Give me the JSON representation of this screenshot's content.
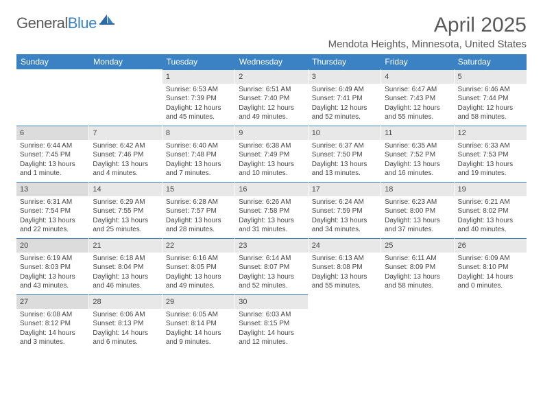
{
  "brand": {
    "word1": "General",
    "word2": "Blue",
    "logo_color": "#3b82c4",
    "text_color": "#5a5a5a"
  },
  "header": {
    "title": "April 2025",
    "location": "Mendota Heights, Minnesota, United States"
  },
  "colors": {
    "header_bg": "#3b82c4",
    "header_text": "#ffffff",
    "daynum_bg": "#e8e8e8",
    "daynum_bg_sunday": "#dcdcdc",
    "cell_border_top": "#3b82c4",
    "body_text": "#444444",
    "page_bg": "#ffffff"
  },
  "fonts": {
    "title_size": 30,
    "location_size": 15,
    "dow_size": 12,
    "daynum_size": 11,
    "body_size": 10,
    "family": "Arial"
  },
  "calendar": {
    "type": "table",
    "days_of_week": [
      "Sunday",
      "Monday",
      "Tuesday",
      "Wednesday",
      "Thursday",
      "Friday",
      "Saturday"
    ],
    "first_dow_index": 2,
    "days": [
      {
        "n": 1,
        "sunrise": "6:53 AM",
        "sunset": "7:39 PM",
        "daylight": "12 hours and 45 minutes."
      },
      {
        "n": 2,
        "sunrise": "6:51 AM",
        "sunset": "7:40 PM",
        "daylight": "12 hours and 49 minutes."
      },
      {
        "n": 3,
        "sunrise": "6:49 AM",
        "sunset": "7:41 PM",
        "daylight": "12 hours and 52 minutes."
      },
      {
        "n": 4,
        "sunrise": "6:47 AM",
        "sunset": "7:43 PM",
        "daylight": "12 hours and 55 minutes."
      },
      {
        "n": 5,
        "sunrise": "6:46 AM",
        "sunset": "7:44 PM",
        "daylight": "12 hours and 58 minutes."
      },
      {
        "n": 6,
        "sunrise": "6:44 AM",
        "sunset": "7:45 PM",
        "daylight": "13 hours and 1 minute."
      },
      {
        "n": 7,
        "sunrise": "6:42 AM",
        "sunset": "7:46 PM",
        "daylight": "13 hours and 4 minutes."
      },
      {
        "n": 8,
        "sunrise": "6:40 AM",
        "sunset": "7:48 PM",
        "daylight": "13 hours and 7 minutes."
      },
      {
        "n": 9,
        "sunrise": "6:38 AM",
        "sunset": "7:49 PM",
        "daylight": "13 hours and 10 minutes."
      },
      {
        "n": 10,
        "sunrise": "6:37 AM",
        "sunset": "7:50 PM",
        "daylight": "13 hours and 13 minutes."
      },
      {
        "n": 11,
        "sunrise": "6:35 AM",
        "sunset": "7:52 PM",
        "daylight": "13 hours and 16 minutes."
      },
      {
        "n": 12,
        "sunrise": "6:33 AM",
        "sunset": "7:53 PM",
        "daylight": "13 hours and 19 minutes."
      },
      {
        "n": 13,
        "sunrise": "6:31 AM",
        "sunset": "7:54 PM",
        "daylight": "13 hours and 22 minutes."
      },
      {
        "n": 14,
        "sunrise": "6:29 AM",
        "sunset": "7:55 PM",
        "daylight": "13 hours and 25 minutes."
      },
      {
        "n": 15,
        "sunrise": "6:28 AM",
        "sunset": "7:57 PM",
        "daylight": "13 hours and 28 minutes."
      },
      {
        "n": 16,
        "sunrise": "6:26 AM",
        "sunset": "7:58 PM",
        "daylight": "13 hours and 31 minutes."
      },
      {
        "n": 17,
        "sunrise": "6:24 AM",
        "sunset": "7:59 PM",
        "daylight": "13 hours and 34 minutes."
      },
      {
        "n": 18,
        "sunrise": "6:23 AM",
        "sunset": "8:00 PM",
        "daylight": "13 hours and 37 minutes."
      },
      {
        "n": 19,
        "sunrise": "6:21 AM",
        "sunset": "8:02 PM",
        "daylight": "13 hours and 40 minutes."
      },
      {
        "n": 20,
        "sunrise": "6:19 AM",
        "sunset": "8:03 PM",
        "daylight": "13 hours and 43 minutes."
      },
      {
        "n": 21,
        "sunrise": "6:18 AM",
        "sunset": "8:04 PM",
        "daylight": "13 hours and 46 minutes."
      },
      {
        "n": 22,
        "sunrise": "6:16 AM",
        "sunset": "8:05 PM",
        "daylight": "13 hours and 49 minutes."
      },
      {
        "n": 23,
        "sunrise": "6:14 AM",
        "sunset": "8:07 PM",
        "daylight": "13 hours and 52 minutes."
      },
      {
        "n": 24,
        "sunrise": "6:13 AM",
        "sunset": "8:08 PM",
        "daylight": "13 hours and 55 minutes."
      },
      {
        "n": 25,
        "sunrise": "6:11 AM",
        "sunset": "8:09 PM",
        "daylight": "13 hours and 58 minutes."
      },
      {
        "n": 26,
        "sunrise": "6:09 AM",
        "sunset": "8:10 PM",
        "daylight": "14 hours and 0 minutes."
      },
      {
        "n": 27,
        "sunrise": "6:08 AM",
        "sunset": "8:12 PM",
        "daylight": "14 hours and 3 minutes."
      },
      {
        "n": 28,
        "sunrise": "6:06 AM",
        "sunset": "8:13 PM",
        "daylight": "14 hours and 6 minutes."
      },
      {
        "n": 29,
        "sunrise": "6:05 AM",
        "sunset": "8:14 PM",
        "daylight": "14 hours and 9 minutes."
      },
      {
        "n": 30,
        "sunrise": "6:03 AM",
        "sunset": "8:15 PM",
        "daylight": "14 hours and 12 minutes."
      }
    ],
    "labels": {
      "sunrise": "Sunrise:",
      "sunset": "Sunset:",
      "daylight": "Daylight:"
    }
  }
}
